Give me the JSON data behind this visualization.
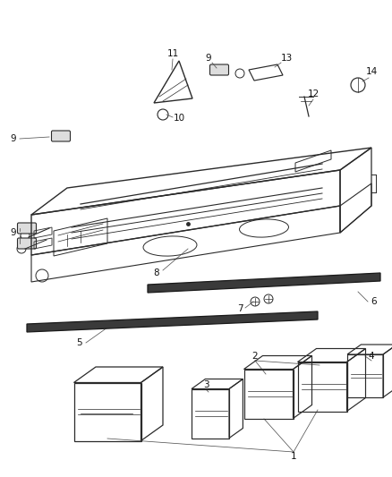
{
  "bg_color": "#ffffff",
  "line_color": "#2a2a2a",
  "leader_color": "#555555",
  "label_color": "#111111",
  "figsize": [
    4.38,
    5.33
  ],
  "dpi": 100,
  "label_fontsize": 7.5,
  "rail_fill": "#3a3a3a",
  "rail_stroke": "#1a1a1a"
}
